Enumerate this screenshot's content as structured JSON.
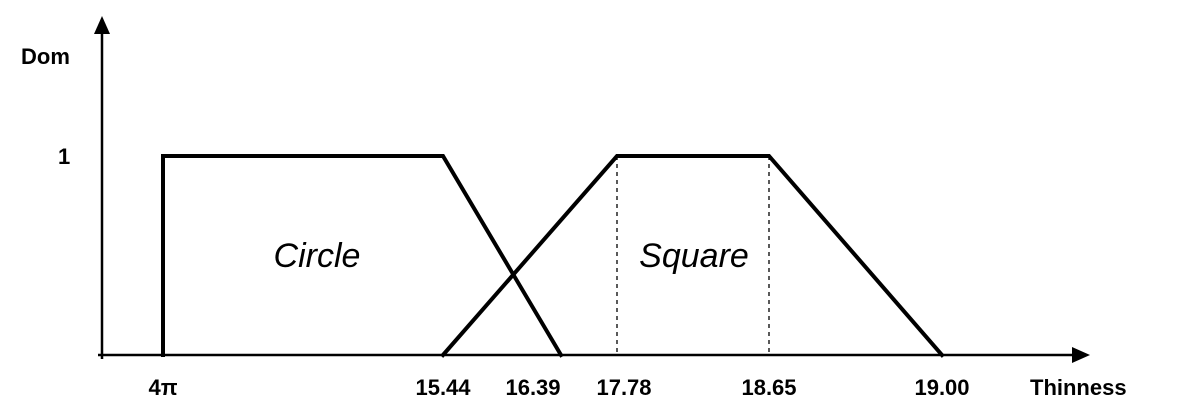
{
  "chart_data": {
    "type": "line",
    "ylabel": "Dom",
    "xlabel": "Thinness",
    "x_ticks": [
      "4π",
      "15.44",
      "16.39",
      "17.78",
      "18.65",
      "19.00"
    ],
    "y_ticks": [
      "1"
    ],
    "series": [
      {
        "name": "Circle",
        "points": [
          {
            "x": "4π",
            "y": 0
          },
          {
            "x": "4π",
            "y": 1
          },
          {
            "x": "15.44",
            "y": 1
          },
          {
            "x": "16.39",
            "y": 0
          }
        ]
      },
      {
        "name": "Square",
        "points": [
          {
            "x": "15.44",
            "y": 0
          },
          {
            "x": "17.78",
            "y": 1
          },
          {
            "x": "18.65",
            "y": 1
          },
          {
            "x": "19.00",
            "y": 0
          }
        ]
      }
    ],
    "dashed_guides_at": [
      "17.78",
      "18.65"
    ]
  }
}
